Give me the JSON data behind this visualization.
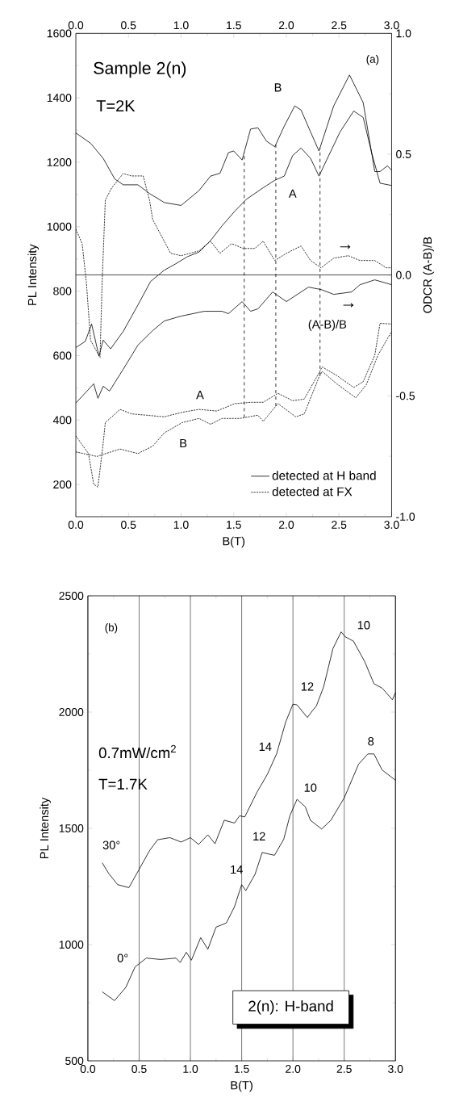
{
  "chart_data": [
    {
      "type": "line",
      "xlabel": "B(T)",
      "ylabel": "PL Intensity",
      "y2label": "ODCR (A-B)/B",
      "xlim": [
        0,
        3
      ],
      "xticks": [
        {
          "value": 0,
          "label": "0.0"
        },
        {
          "value": 0.5,
          "label": "0.5"
        },
        {
          "value": 1,
          "label": "1.0"
        },
        {
          "value": 1.5,
          "label": "1.5"
        },
        {
          "value": 2,
          "label": "2.0"
        },
        {
          "value": 2.5,
          "label": "2.5"
        },
        {
          "value": 3,
          "label": "3.0"
        }
      ],
      "x2lim": [
        0,
        3
      ],
      "x2ticks": [
        {
          "value": 0,
          "label": "0.0"
        },
        {
          "value": 0.5,
          "label": "0.5"
        },
        {
          "value": 1,
          "label": "1.0"
        },
        {
          "value": 1.5,
          "label": "1.5"
        },
        {
          "value": 2,
          "label": "2.0"
        },
        {
          "value": 2.5,
          "label": "2.5"
        },
        {
          "value": 3,
          "label": "3.0"
        }
      ],
      "ylim": [
        100,
        1600
      ],
      "yticks": [
        200,
        400,
        600,
        800,
        1000,
        1200,
        1400,
        1600
      ],
      "y2lim": [
        -1,
        1
      ],
      "y2ticks": [
        {
          "value": -1,
          "label": "-1.0"
        },
        {
          "value": -0.5,
          "label": "-0.5"
        },
        {
          "value": 0,
          "label": "0.0"
        },
        {
          "value": 0.5,
          "label": "0.5"
        },
        {
          "value": 1,
          "label": "1.0"
        }
      ],
      "legend": "bottom right",
      "grid": false,
      "series": [
        {
          "name": "detected at H band",
          "color": "#000000",
          "line_style": "solid",
          "x": [
            0,
            0.14,
            0.26,
            0.37,
            0.45,
            0.59,
            0.7,
            0.84,
            1.0,
            1.17,
            1.28,
            1.37,
            1.45,
            1.5,
            1.58,
            1.66,
            1.73,
            1.81,
            1.89,
            1.98,
            2.08,
            2.14,
            2.23,
            2.31,
            2.45,
            2.6,
            2.73,
            2.84,
            2.89,
            2.96,
            3.0
          ],
          "values": [
            1291,
            1259,
            1212,
            1148,
            1130,
            1130,
            1103,
            1075,
            1066,
            1112,
            1157,
            1166,
            1230,
            1235,
            1207,
            1303,
            1307,
            1266,
            1248,
            1312,
            1375,
            1362,
            1294,
            1235,
            1375,
            1471,
            1385,
            1171,
            1171,
            1189,
            1175
          ]
        },
        {
          "color": "#000000",
          "line_style": "solid",
          "x": [
            0,
            0.09,
            0.15,
            0.22,
            0.26,
            0.33,
            0.45,
            0.59,
            0.71,
            0.84,
            0.95,
            1.06,
            1.17,
            1.28,
            1.39,
            1.51,
            1.62,
            1.78,
            1.89,
            1.98,
            2.06,
            2.14,
            2.23,
            2.31,
            2.39,
            2.51,
            2.64,
            2.73,
            2.81,
            2.89,
            3.0
          ],
          "values": [
            625,
            644,
            698,
            598,
            648,
            621,
            675,
            757,
            830,
            865,
            885,
            907,
            921,
            957,
            1003,
            1048,
            1085,
            1121,
            1144,
            1157,
            1221,
            1244,
            1212,
            1157,
            1212,
            1294,
            1359,
            1339,
            1230,
            1135,
            1128
          ]
        },
        {
          "name": "detected at FX",
          "color": "#000000",
          "line_style": "dotted",
          "x": [
            0,
            0.12,
            0.17,
            0.21,
            0.26,
            0.28,
            0.42,
            0.53,
            0.67,
            0.84,
            1.01,
            1.17,
            1.34,
            1.51,
            1.67,
            1.78,
            1.92,
            2.06,
            2.17,
            2.31,
            2.34,
            2.48,
            2.64,
            2.73,
            2.84,
            2.89,
            3.0
          ],
          "values": [
            351,
            296,
            201,
            192,
            328,
            392,
            433,
            419,
            415,
            410,
            424,
            433,
            428,
            451,
            455,
            455,
            483,
            460,
            465,
            546,
            565,
            538,
            501,
            519,
            601,
            700,
            698
          ]
        },
        {
          "color": "#000000",
          "line_style": "dotted",
          "x": [
            0,
            0.2,
            0.42,
            0.59,
            0.73,
            0.84,
            1.01,
            1.17,
            1.28,
            1.39,
            1.56,
            1.73,
            1.78,
            1.92,
            2.09,
            2.17,
            2.31,
            2.34,
            2.48,
            2.66,
            2.76,
            2.87,
            3.0
          ],
          "values": [
            301,
            287,
            310,
            296,
            319,
            360,
            392,
            405,
            387,
            405,
            405,
            415,
            396,
            451,
            410,
            419,
            533,
            551,
            512,
            469,
            510,
            601,
            675
          ]
        },
        {
          "color": "#000000",
          "line_style": "solid",
          "axis": "y2",
          "x": [
            0,
            0.17,
            0.21,
            0.26,
            0.32,
            0.45,
            0.59,
            0.73,
            0.84,
            1.0,
            1.22,
            1.39,
            1.45,
            1.58,
            1.66,
            1.73,
            1.87,
            2.0,
            2.21,
            2.33,
            2.45,
            2.62,
            2.7,
            2.84,
            3.0
          ],
          "values": [
            -0.53,
            -0.45,
            -0.51,
            -0.46,
            -0.48,
            -0.39,
            -0.29,
            -0.23,
            -0.19,
            -0.17,
            -0.15,
            -0.15,
            -0.16,
            -0.11,
            -0.15,
            -0.14,
            -0.07,
            -0.11,
            -0.05,
            -0.06,
            -0.08,
            -0.07,
            -0.04,
            -0.02,
            -0.04
          ]
        },
        {
          "color": "#000000",
          "line_style": "dotted",
          "axis": "y2",
          "x": [
            0,
            0.06,
            0.1,
            0.14,
            0.19,
            0.23,
            0.25,
            0.28,
            0.34,
            0.45,
            0.53,
            0.64,
            0.7,
            0.73,
            0.84,
            0.9,
            1.0,
            1.17,
            1.28,
            1.37,
            1.48,
            1.59,
            1.7,
            1.78,
            1.89,
            2.0,
            2.14,
            2.23,
            2.33,
            2.45,
            2.59,
            2.7,
            2.84,
            2.95,
            3.0
          ],
          "values": [
            0.19,
            0.13,
            -0.03,
            -0.27,
            -0.31,
            -0.34,
            -0.03,
            0.31,
            0.36,
            0.42,
            0.41,
            0.41,
            0.31,
            0.23,
            0.14,
            0.09,
            0.08,
            0.1,
            0.14,
            0.09,
            0.13,
            0.11,
            0.11,
            0.14,
            0.06,
            0.09,
            0.12,
            0.06,
            0.03,
            0.07,
            0.08,
            0.06,
            0.06,
            0.03,
            0.03
          ]
        }
      ],
      "ref_lines": [
        {
          "axis": "y2",
          "value": 0,
          "line_style": "solid"
        },
        {
          "axis": "x",
          "value": 1.6,
          "line_style": "dashed"
        },
        {
          "axis": "x",
          "value": 1.9,
          "line_style": "dashed"
        },
        {
          "axis": "x",
          "value": 2.32,
          "line_style": "dashed"
        }
      ],
      "annotations": [
        "Sample 2(n)",
        "T=2K",
        "(a)",
        "B",
        "A",
        "(A-B)/B",
        "A",
        "B",
        "→",
        "→"
      ]
    },
    {
      "type": "line",
      "xlabel": "B(T)",
      "ylabel": "PL Intensity",
      "xlim": [
        0,
        3
      ],
      "xticks": [
        {
          "value": 0,
          "label": "0.0"
        },
        {
          "value": 0.5,
          "label": "0.5"
        },
        {
          "value": 1,
          "label": "1.0"
        },
        {
          "value": 1.5,
          "label": "1.5"
        },
        {
          "value": 2,
          "label": "2.0"
        },
        {
          "value": 2.5,
          "label": "2.5"
        },
        {
          "value": 3,
          "label": "3.0"
        }
      ],
      "ylim": [
        500,
        2500
      ],
      "yticks": [
        500,
        1000,
        1500,
        2000,
        2500
      ],
      "grid": "x",
      "tick_labels": "xy",
      "series": [
        {
          "color": "#000000",
          "line_style": "solid",
          "x": [
            0.14,
            0.2,
            0.29,
            0.4,
            0.48,
            0.6,
            0.68,
            0.8,
            0.91,
            1.0,
            1.08,
            1.17,
            1.24,
            1.33,
            1.43,
            1.48,
            1.53,
            1.65,
            1.75,
            1.84,
            1.93,
            2.0,
            2.04,
            2.14,
            2.23,
            2.3,
            2.39,
            2.47,
            2.51,
            2.59,
            2.7,
            2.79,
            2.87,
            2.97,
            3.0
          ],
          "values": [
            1352,
            1308,
            1258,
            1245,
            1308,
            1403,
            1451,
            1460,
            1441,
            1460,
            1431,
            1472,
            1434,
            1535,
            1523,
            1554,
            1549,
            1656,
            1732,
            1820,
            1958,
            2034,
            2031,
            1977,
            2028,
            2110,
            2273,
            2345,
            2324,
            2305,
            2217,
            2122,
            2103,
            2053,
            2084
          ]
        },
        {
          "color": "#000000",
          "line_style": "solid",
          "x": [
            0.14,
            0.26,
            0.37,
            0.46,
            0.57,
            0.71,
            0.86,
            0.9,
            0.96,
            1.01,
            1.1,
            1.17,
            1.25,
            1.35,
            1.43,
            1.5,
            1.54,
            1.63,
            1.7,
            1.82,
            1.91,
            1.97,
            2.04,
            2.12,
            2.17,
            2.28,
            2.37,
            2.5,
            2.64,
            2.73,
            2.79,
            2.87,
            3.0
          ],
          "values": [
            797,
            759,
            816,
            904,
            942,
            936,
            942,
            923,
            967,
            933,
            1030,
            980,
            1075,
            1093,
            1163,
            1258,
            1232,
            1302,
            1396,
            1384,
            1453,
            1554,
            1625,
            1593,
            1535,
            1497,
            1535,
            1631,
            1776,
            1820,
            1820,
            1751,
            1707
          ]
        }
      ],
      "annotations": [
        "(b)",
        "0.7mW/cm$^{2}$",
        "T=1.7K",
        "2(n): H-band",
        "30°",
        "0°",
        "14",
        "12",
        "10",
        "14",
        "12",
        "10",
        "8"
      ]
    }
  ]
}
